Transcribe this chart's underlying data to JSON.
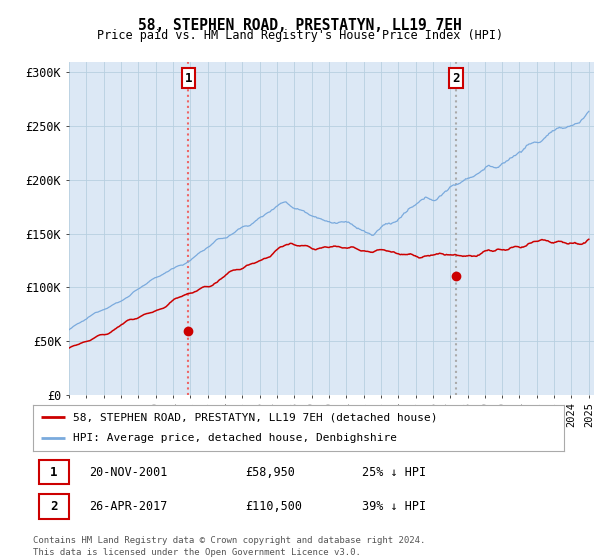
{
  "title": "58, STEPHEN ROAD, PRESTATYN, LL19 7EH",
  "subtitle": "Price paid vs. HM Land Registry's House Price Index (HPI)",
  "bg_color": "#dce8f5",
  "red_color": "#cc0000",
  "blue_color": "#7aaadd",
  "grid_color": "#b8cfe0",
  "ylim": [
    0,
    310000
  ],
  "xlim_start": 1995.0,
  "xlim_end": 2025.3,
  "sale1_date": 2001.896,
  "sale1_price": 58950,
  "sale2_date": 2017.32,
  "sale2_price": 110500,
  "legend_red": "58, STEPHEN ROAD, PRESTATYN, LL19 7EH (detached house)",
  "legend_blue": "HPI: Average price, detached house, Denbighshire",
  "table_row1": [
    "1",
    "20-NOV-2001",
    "£58,950",
    "25% ↓ HPI"
  ],
  "table_row2": [
    "2",
    "26-APR-2017",
    "£110,500",
    "39% ↓ HPI"
  ],
  "footer1": "Contains HM Land Registry data © Crown copyright and database right 2024.",
  "footer2": "This data is licensed under the Open Government Licence v3.0.",
  "yticks": [
    0,
    50000,
    100000,
    150000,
    200000,
    250000,
    300000
  ],
  "ytick_labels": [
    "£0",
    "£50K",
    "£100K",
    "£150K",
    "£200K",
    "£250K",
    "£300K"
  ]
}
